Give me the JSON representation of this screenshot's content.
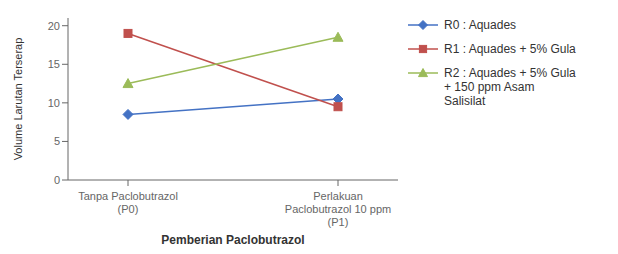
{
  "chart_data": {
    "type": "line",
    "categories": [
      "Tanpa Paclobutrazol\n(P0)",
      "Perlakuan\nPaclobutrazol 10 ppm\n(P1)"
    ],
    "series": [
      {
        "name": "R0 : Aquades",
        "color": "#4472C4",
        "marker": "diamond",
        "values": [
          8.5,
          10.5
        ]
      },
      {
        "name": "R1 : Aquades + 5% Gula",
        "color": "#C0504D",
        "marker": "square",
        "values": [
          19.0,
          9.5
        ]
      },
      {
        "name": "R2 : Aquades + 5% Gula\n+ 150 ppm Asam\nSalisilat",
        "color": "#9BBB59",
        "marker": "triangle",
        "values": [
          12.5,
          18.5
        ]
      }
    ],
    "ylabel": "Volume Larutan Terserap",
    "xlabel": "Pemberian Paclobutrazol",
    "ylim": [
      0,
      21
    ],
    "yticks": [
      0,
      5,
      10,
      15,
      20
    ],
    "grid": false,
    "legend": "right"
  }
}
